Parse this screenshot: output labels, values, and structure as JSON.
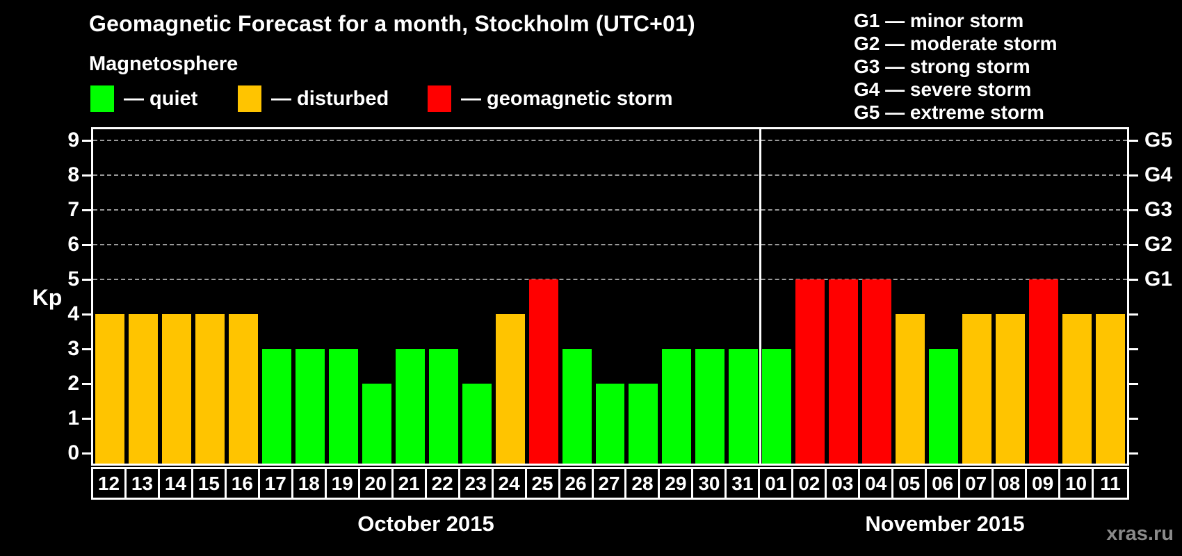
{
  "title": "Geomagnetic Forecast for a month, Stockholm (UTC+01)",
  "magnetosphere": {
    "heading": "Magnetosphere",
    "items": [
      {
        "key": "quiet",
        "label": "— quiet"
      },
      {
        "key": "disturbed",
        "label": "— disturbed"
      },
      {
        "key": "storm",
        "label": "— geomagnetic storm"
      }
    ]
  },
  "g_legend": {
    "items": [
      "G1 — minor storm",
      "G2 — moderate storm",
      "G3 — strong storm",
      "G4 — severe storm",
      "G5 — extreme storm"
    ]
  },
  "axes": {
    "y_label": "Kp",
    "y_ticks": [
      "0",
      "1",
      "2",
      "3",
      "4",
      "5",
      "6",
      "7",
      "8",
      "9"
    ],
    "right_labels": [
      {
        "kp": 5,
        "label": "G1"
      },
      {
        "kp": 6,
        "label": "G2"
      },
      {
        "kp": 7,
        "label": "G3"
      },
      {
        "kp": 8,
        "label": "G4"
      },
      {
        "kp": 9,
        "label": "G5"
      }
    ],
    "gridlines_kp": [
      5,
      6,
      7,
      8,
      9
    ]
  },
  "watermark": "xras.ru",
  "chart_data": {
    "type": "bar",
    "title": "Geomagnetic Forecast for a month, Stockholm (UTC+01)",
    "xlabel": "",
    "ylabel": "Kp",
    "ylim": [
      0,
      9
    ],
    "legend_position": "top-left",
    "grid": "dashed horizontal at Kp 5-9 (G1-G5)",
    "status_colors": {
      "quiet": "#00ff00",
      "disturbed": "#ffc400",
      "storm": "#ff0000"
    },
    "months": [
      {
        "name": "October 2015",
        "days": [
          "12",
          "13",
          "14",
          "15",
          "16",
          "17",
          "18",
          "19",
          "20",
          "21",
          "22",
          "23",
          "24",
          "25",
          "26",
          "27",
          "28",
          "29",
          "30",
          "31"
        ],
        "values": [
          4,
          4,
          4,
          4,
          4,
          3,
          3,
          3,
          2,
          3,
          3,
          2,
          4,
          5,
          3,
          2,
          2,
          3,
          3,
          3
        ],
        "status": [
          "disturbed",
          "disturbed",
          "disturbed",
          "disturbed",
          "disturbed",
          "quiet",
          "quiet",
          "quiet",
          "quiet",
          "quiet",
          "quiet",
          "quiet",
          "disturbed",
          "storm",
          "quiet",
          "quiet",
          "quiet",
          "quiet",
          "quiet",
          "quiet"
        ]
      },
      {
        "name": "November 2015",
        "days": [
          "01",
          "02",
          "03",
          "04",
          "05",
          "06",
          "07",
          "08",
          "09",
          "10",
          "11"
        ],
        "values": [
          3,
          5,
          5,
          5,
          4,
          3,
          4,
          4,
          5,
          4,
          4
        ],
        "status": [
          "quiet",
          "storm",
          "storm",
          "storm",
          "disturbed",
          "quiet",
          "disturbed",
          "disturbed",
          "storm",
          "disturbed",
          "disturbed"
        ]
      }
    ]
  }
}
